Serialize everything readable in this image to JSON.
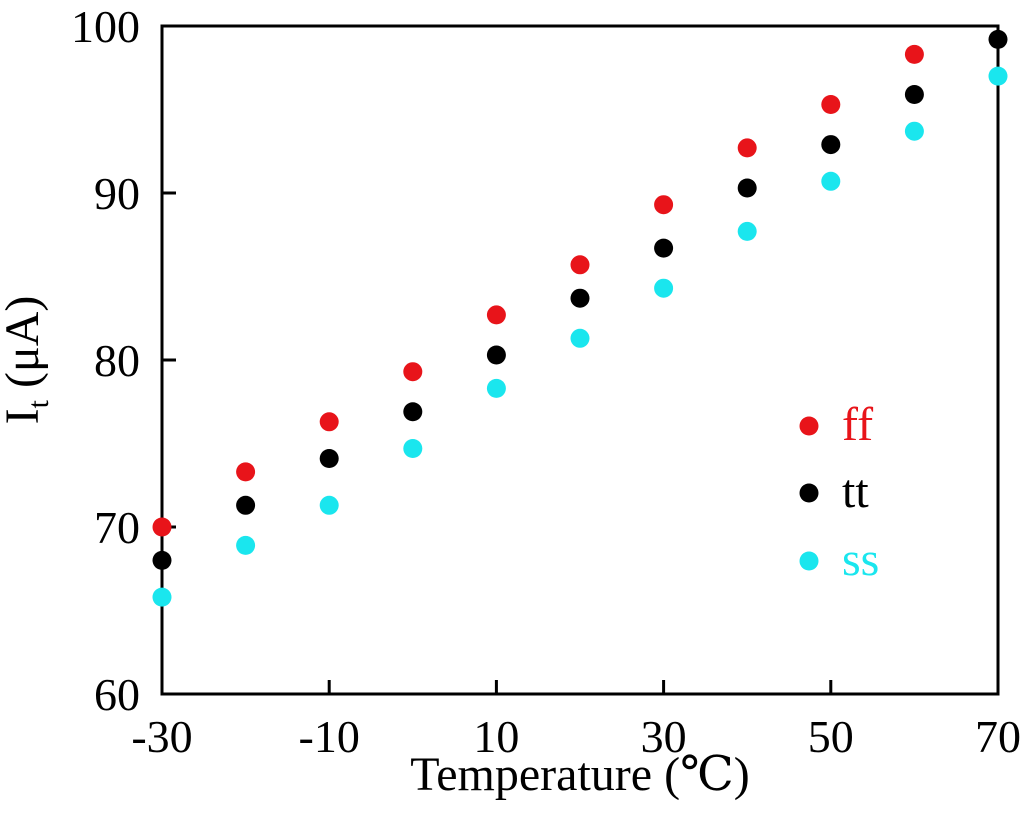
{
  "chart_data": {
    "type": "scatter",
    "title": "",
    "xlabel": "Temperature (℃)",
    "ylabel": {
      "main": "I",
      "subscript": "t",
      "unit": " (μA)"
    },
    "xlim": [
      -30,
      70
    ],
    "ylim": [
      60,
      100
    ],
    "x_ticks": [
      -30,
      -10,
      10,
      30,
      50,
      70
    ],
    "x_tick_labels": [
      "-30",
      "-10",
      "10",
      "30",
      "50",
      "70"
    ],
    "y_ticks": [
      60,
      70,
      80,
      90,
      100
    ],
    "y_tick_labels": [
      "60",
      "70",
      "80",
      "90",
      "100"
    ],
    "grid": false,
    "legend_position": "right",
    "series": [
      {
        "name": "ff",
        "color": "#e8141a",
        "x": [
          -30,
          -20,
          -10,
          0,
          10,
          20,
          30,
          40,
          50,
          60
        ],
        "y": [
          70.0,
          73.3,
          76.3,
          79.3,
          82.7,
          85.7,
          89.3,
          92.7,
          95.3,
          98.3
        ]
      },
      {
        "name": "tt",
        "color": "#000000",
        "x": [
          -30,
          -20,
          -10,
          0,
          10,
          20,
          30,
          40,
          50,
          60,
          70
        ],
        "y": [
          68.0,
          71.3,
          74.1,
          76.9,
          80.3,
          83.7,
          86.7,
          90.3,
          92.9,
          95.9,
          99.2
        ]
      },
      {
        "name": "ss",
        "color": "#1ae6ee",
        "x": [
          -30,
          -20,
          -10,
          0,
          10,
          20,
          30,
          40,
          50,
          60,
          70
        ],
        "y": [
          65.8,
          68.9,
          71.3,
          74.7,
          78.3,
          81.3,
          84.3,
          87.7,
          90.7,
          93.7,
          97.0
        ]
      }
    ]
  }
}
